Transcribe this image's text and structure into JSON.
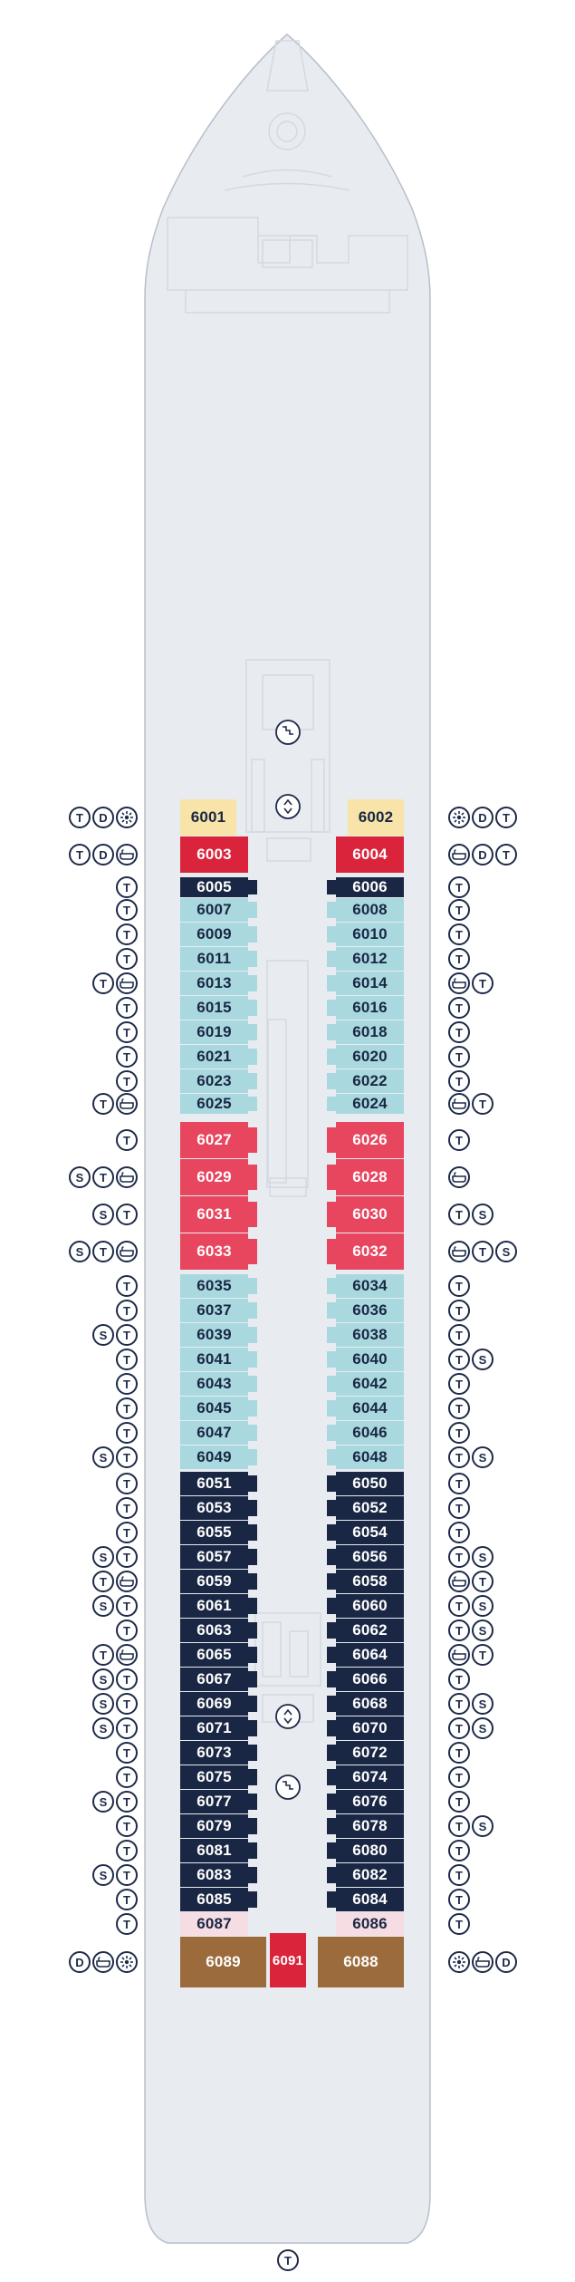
{
  "colors": {
    "hull_fill": "#e8ecf1",
    "hull_stroke": "#b6bfca",
    "detail_stroke": "#d2d9e1",
    "cream": "#f8e4a8",
    "red": "#d9243c",
    "pink": "#e8455f",
    "light_blue": "#a9d9df",
    "navy": "#1a2744",
    "light_pink": "#f6dde3",
    "brown": "#9c6b3c",
    "text_dark": "#1a2744",
    "text_light": "#ffffff",
    "symbol": "#1d2a48"
  },
  "cabins_left": [
    {
      "number": "6001",
      "cat": "cream"
    },
    {
      "number": "6003",
      "cat": "red"
    },
    {
      "number": "6005",
      "cat": "navy"
    },
    {
      "number": "6007",
      "cat": "light_blue"
    },
    {
      "number": "6009",
      "cat": "light_blue"
    },
    {
      "number": "6011",
      "cat": "light_blue"
    },
    {
      "number": "6013",
      "cat": "light_blue"
    },
    {
      "number": "6015",
      "cat": "light_blue"
    },
    {
      "number": "6019",
      "cat": "light_blue"
    },
    {
      "number": "6021",
      "cat": "light_blue"
    },
    {
      "number": "6023",
      "cat": "light_blue"
    },
    {
      "number": "6025",
      "cat": "light_blue"
    },
    {
      "number": "6027",
      "cat": "pink"
    },
    {
      "number": "6029",
      "cat": "pink"
    },
    {
      "number": "6031",
      "cat": "pink"
    },
    {
      "number": "6033",
      "cat": "pink"
    },
    {
      "number": "6035",
      "cat": "light_blue"
    },
    {
      "number": "6037",
      "cat": "light_blue"
    },
    {
      "number": "6039",
      "cat": "light_blue"
    },
    {
      "number": "6041",
      "cat": "light_blue"
    },
    {
      "number": "6043",
      "cat": "light_blue"
    },
    {
      "number": "6045",
      "cat": "light_blue"
    },
    {
      "number": "6047",
      "cat": "light_blue"
    },
    {
      "number": "6049",
      "cat": "light_blue"
    },
    {
      "number": "6051",
      "cat": "navy"
    },
    {
      "number": "6053",
      "cat": "navy"
    },
    {
      "number": "6055",
      "cat": "navy"
    },
    {
      "number": "6057",
      "cat": "navy"
    },
    {
      "number": "6059",
      "cat": "navy"
    },
    {
      "number": "6061",
      "cat": "navy"
    },
    {
      "number": "6063",
      "cat": "navy"
    },
    {
      "number": "6065",
      "cat": "navy"
    },
    {
      "number": "6067",
      "cat": "navy"
    },
    {
      "number": "6069",
      "cat": "navy"
    },
    {
      "number": "6071",
      "cat": "navy"
    },
    {
      "number": "6073",
      "cat": "navy"
    },
    {
      "number": "6075",
      "cat": "navy"
    },
    {
      "number": "6077",
      "cat": "navy"
    },
    {
      "number": "6079",
      "cat": "navy"
    },
    {
      "number": "6081",
      "cat": "navy"
    },
    {
      "number": "6083",
      "cat": "navy"
    },
    {
      "number": "6085",
      "cat": "navy"
    },
    {
      "number": "6087",
      "cat": "light_pink"
    },
    {
      "number": "6089",
      "cat": "brown"
    }
  ],
  "cabins_right": [
    {
      "number": "6002",
      "cat": "cream"
    },
    {
      "number": "6004",
      "cat": "red"
    },
    {
      "number": "6006",
      "cat": "navy"
    },
    {
      "number": "6008",
      "cat": "light_blue"
    },
    {
      "number": "6010",
      "cat": "light_blue"
    },
    {
      "number": "6012",
      "cat": "light_blue"
    },
    {
      "number": "6014",
      "cat": "light_blue"
    },
    {
      "number": "6016",
      "cat": "light_blue"
    },
    {
      "number": "6018",
      "cat": "light_blue"
    },
    {
      "number": "6020",
      "cat": "light_blue"
    },
    {
      "number": "6022",
      "cat": "light_blue"
    },
    {
      "number": "6024",
      "cat": "light_blue"
    },
    {
      "number": "6026",
      "cat": "pink"
    },
    {
      "number": "6028",
      "cat": "pink"
    },
    {
      "number": "6030",
      "cat": "pink"
    },
    {
      "number": "6032",
      "cat": "pink"
    },
    {
      "number": "6034",
      "cat": "light_blue"
    },
    {
      "number": "6036",
      "cat": "light_blue"
    },
    {
      "number": "6038",
      "cat": "light_blue"
    },
    {
      "number": "6040",
      "cat": "light_blue"
    },
    {
      "number": "6042",
      "cat": "light_blue"
    },
    {
      "number": "6044",
      "cat": "light_blue"
    },
    {
      "number": "6046",
      "cat": "light_blue"
    },
    {
      "number": "6048",
      "cat": "light_blue"
    },
    {
      "number": "6050",
      "cat": "navy"
    },
    {
      "number": "6052",
      "cat": "navy"
    },
    {
      "number": "6054",
      "cat": "navy"
    },
    {
      "number": "6056",
      "cat": "navy"
    },
    {
      "number": "6058",
      "cat": "navy"
    },
    {
      "number": "6060",
      "cat": "navy"
    },
    {
      "number": "6062",
      "cat": "navy"
    },
    {
      "number": "6064",
      "cat": "navy"
    },
    {
      "number": "6066",
      "cat": "navy"
    },
    {
      "number": "6068",
      "cat": "navy"
    },
    {
      "number": "6070",
      "cat": "navy"
    },
    {
      "number": "6072",
      "cat": "navy"
    },
    {
      "number": "6074",
      "cat": "navy"
    },
    {
      "number": "6076",
      "cat": "navy"
    },
    {
      "number": "6078",
      "cat": "navy"
    },
    {
      "number": "6080",
      "cat": "navy"
    },
    {
      "number": "6082",
      "cat": "navy"
    },
    {
      "number": "6084",
      "cat": "navy"
    },
    {
      "number": "6086",
      "cat": "light_pink"
    },
    {
      "number": "6088",
      "cat": "brown"
    }
  ],
  "cabin_center": {
    "number": "6091",
    "cat": "red"
  },
  "icons_left": [
    [
      "T",
      "D",
      "veranda"
    ],
    [
      "T",
      "D",
      "bath"
    ],
    [
      "T"
    ],
    [
      "T"
    ],
    [
      "T"
    ],
    [
      "T"
    ],
    [
      "T",
      "bath"
    ],
    [
      "T"
    ],
    [
      "T"
    ],
    [
      "T"
    ],
    [
      "T"
    ],
    [
      "T",
      "bath"
    ],
    [
      "T"
    ],
    [
      "S",
      "T",
      "bath"
    ],
    [
      "S",
      "T"
    ],
    [
      "S",
      "T",
      "bath"
    ],
    [
      "T"
    ],
    [
      "T"
    ],
    [
      "S",
      "T"
    ],
    [
      "T"
    ],
    [
      "T"
    ],
    [
      "T"
    ],
    [
      "T"
    ],
    [
      "S",
      "T"
    ],
    [
      "T"
    ],
    [
      "T"
    ],
    [
      "T"
    ],
    [
      "S",
      "T"
    ],
    [
      "T",
      "bath"
    ],
    [
      "S",
      "T"
    ],
    [
      "T"
    ],
    [
      "T",
      "bath"
    ],
    [
      "S",
      "T"
    ],
    [
      "S",
      "T"
    ],
    [
      "S",
      "T"
    ],
    [
      "T"
    ],
    [
      "T"
    ],
    [
      "S",
      "T"
    ],
    [
      "T"
    ],
    [
      "T"
    ],
    [
      "S",
      "T"
    ],
    [
      "T"
    ],
    [
      "T"
    ],
    [
      "D",
      "bath",
      "veranda"
    ]
  ],
  "icons_right": [
    [
      "veranda",
      "D",
      "T"
    ],
    [
      "bath",
      "D",
      "T"
    ],
    [
      "T"
    ],
    [
      "T"
    ],
    [
      "T"
    ],
    [
      "T"
    ],
    [
      "bath",
      "T"
    ],
    [
      "T"
    ],
    [
      "T"
    ],
    [
      "T"
    ],
    [
      "T"
    ],
    [
      "bath",
      "T"
    ],
    [
      "T"
    ],
    [
      "bath"
    ],
    [
      "T",
      "S"
    ],
    [
      "bath",
      "T",
      "S"
    ],
    [
      "T"
    ],
    [
      "T"
    ],
    [
      "T"
    ],
    [
      "T",
      "S"
    ],
    [
      "T"
    ],
    [
      "T"
    ],
    [
      "T"
    ],
    [
      "T",
      "S"
    ],
    [
      "T"
    ],
    [
      "T"
    ],
    [
      "T"
    ],
    [
      "T",
      "S"
    ],
    [
      "bath",
      "T"
    ],
    [
      "T",
      "S"
    ],
    [
      "T",
      "S"
    ],
    [
      "bath",
      "T"
    ],
    [
      "T"
    ],
    [
      "T",
      "S"
    ],
    [
      "T",
      "S"
    ],
    [
      "T"
    ],
    [
      "T"
    ],
    [
      "T"
    ],
    [
      "T",
      "S"
    ],
    [
      "T"
    ],
    [
      "T"
    ],
    [
      "T"
    ],
    [
      "T"
    ],
    [
      "veranda",
      "bath",
      "D"
    ]
  ],
  "bottom_icon": "T",
  "elevator_icon": "elevator-icon",
  "stairs_icon": "stairs-icon"
}
